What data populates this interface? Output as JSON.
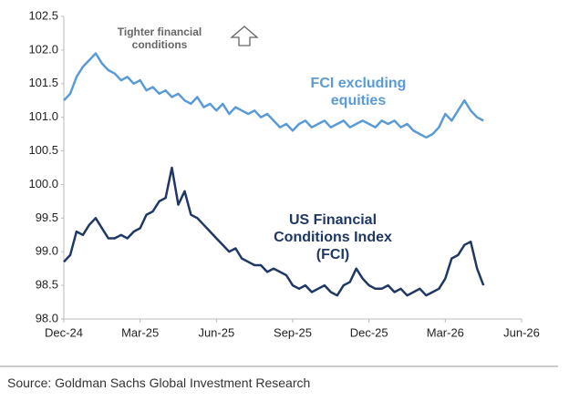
{
  "chart_data": {
    "type": "line",
    "annotation": "Tighter financial conditions",
    "source": "Source: Goldman Sachs Global Investment Research",
    "categories": [
      "Dec-24",
      null,
      null,
      null,
      null,
      null,
      null,
      null,
      null,
      null,
      null,
      null,
      "Mar-25",
      null,
      null,
      null,
      null,
      null,
      null,
      null,
      null,
      null,
      null,
      null,
      "Jun-25",
      null,
      null,
      null,
      null,
      null,
      null,
      null,
      null,
      null,
      null,
      null,
      "Sep-25",
      null,
      null,
      null,
      null,
      null,
      null,
      null,
      null,
      null,
      null,
      null,
      "Dec-25",
      null,
      null,
      null,
      null,
      null,
      null,
      null,
      null,
      null,
      null,
      null,
      "Mar-26",
      null,
      null,
      null,
      null,
      null,
      null,
      null,
      null,
      null,
      null,
      null,
      "Jun-26"
    ],
    "series": [
      {
        "name": "FCI excluding equities",
        "color": "#5b9bd5",
        "values": [
          101.25,
          101.35,
          101.6,
          101.75,
          101.85,
          101.95,
          101.8,
          101.7,
          101.65,
          101.55,
          101.6,
          101.5,
          101.55,
          101.4,
          101.45,
          101.35,
          101.4,
          101.3,
          101.35,
          101.25,
          101.2,
          101.3,
          101.15,
          101.2,
          101.1,
          101.2,
          101.05,
          101.15,
          101.1,
          101.05,
          101.1,
          101.0,
          101.05,
          100.95,
          100.85,
          100.9,
          100.8,
          100.9,
          100.95,
          100.85,
          100.9,
          100.95,
          100.85,
          100.9,
          100.95,
          100.85,
          100.9,
          100.95,
          100.9,
          100.85,
          100.95,
          100.9,
          100.95,
          100.85,
          100.9,
          100.8,
          100.75,
          100.7,
          100.75,
          100.85,
          101.05,
          100.95,
          101.1,
          101.25,
          101.1,
          101.0,
          100.95,
          null,
          null,
          null,
          null,
          null,
          null
        ]
      },
      {
        "name": "US Financial Conditions Index (FCI)",
        "color": "#1f3864",
        "values": [
          98.85,
          98.95,
          99.3,
          99.25,
          99.4,
          99.5,
          99.35,
          99.2,
          99.2,
          99.25,
          99.2,
          99.3,
          99.35,
          99.55,
          99.6,
          99.75,
          99.8,
          100.25,
          99.7,
          99.9,
          99.55,
          99.5,
          99.4,
          99.3,
          99.2,
          99.1,
          99.0,
          99.05,
          98.9,
          98.85,
          98.8,
          98.8,
          98.7,
          98.75,
          98.7,
          98.65,
          98.5,
          98.45,
          98.5,
          98.4,
          98.45,
          98.5,
          98.4,
          98.35,
          98.5,
          98.55,
          98.75,
          98.6,
          98.5,
          98.45,
          98.45,
          98.5,
          98.4,
          98.45,
          98.35,
          98.4,
          98.45,
          98.35,
          98.4,
          98.45,
          98.6,
          98.9,
          98.95,
          99.1,
          99.15,
          98.75,
          98.5,
          null,
          null,
          null,
          null,
          null,
          null
        ]
      }
    ],
    "ylim": [
      98,
      102.5
    ],
    "yticks": [
      {
        "value": 98,
        "label": "98.0"
      },
      98.5,
      {
        "value": 99,
        "label": "99.0"
      },
      99.5,
      {
        "value": 100,
        "label": "100.0"
      },
      100.5,
      {
        "value": 101,
        "label": "101.0"
      },
      101.5,
      {
        "value": 102,
        "label": "102.0"
      },
      102.5
    ],
    "grid": false
  }
}
